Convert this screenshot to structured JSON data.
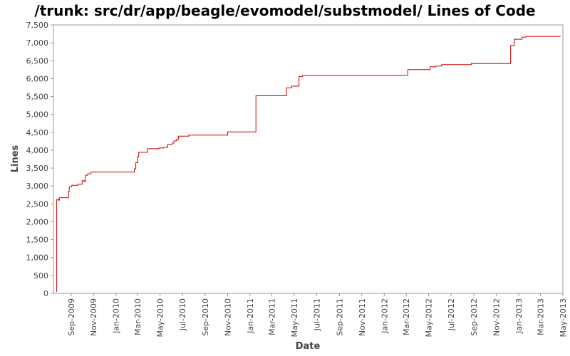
{
  "chart_data": {
    "type": "line",
    "title": "/trunk: src/dr/app/beagle/evomodel/substmodel/ Lines of Code",
    "xlabel": "Date",
    "ylabel": "Lines",
    "ylim": [
      0,
      7500
    ],
    "xlim": [
      "2009-07-15",
      "2013-05-01"
    ],
    "grid": false,
    "legend": "none",
    "line_color": "#cc0000",
    "y_ticks": [
      0,
      500,
      1000,
      1500,
      2000,
      2500,
      3000,
      3500,
      4000,
      4500,
      5000,
      5500,
      6000,
      6500,
      7000,
      7500
    ],
    "y_tick_labels": [
      "0",
      "500",
      "1,000",
      "1,500",
      "2,000",
      "2,500",
      "3,000",
      "3,500",
      "4,000",
      "4,500",
      "5,000",
      "5,500",
      "6,000",
      "6,500",
      "7,000",
      "7,500"
    ],
    "x_ticks": [
      "2009-09-01",
      "2009-11-01",
      "2010-01-01",
      "2010-03-01",
      "2010-05-01",
      "2010-07-01",
      "2010-09-01",
      "2010-11-01",
      "2011-01-01",
      "2011-03-01",
      "2011-05-01",
      "2011-07-01",
      "2011-09-01",
      "2011-11-01",
      "2012-01-01",
      "2012-03-01",
      "2012-05-01",
      "2012-07-01",
      "2012-09-01",
      "2012-11-01",
      "2013-01-01",
      "2013-03-01",
      "2013-05-01"
    ],
    "x_tick_labels": [
      "Sep-2009",
      "Nov-2009",
      "Jan-2010",
      "Mar-2010",
      "May-2010",
      "Jul-2010",
      "Sep-2010",
      "Nov-2010",
      "Jan-2011",
      "Mar-2011",
      "May-2011",
      "Jul-2011",
      "Sep-2011",
      "Nov-2011",
      "Jan-2012",
      "Mar-2012",
      "May-2012",
      "Jul-2012",
      "Sep-2012",
      "Nov-2012",
      "Jan-2013",
      "Mar-2013",
      "May-2013"
    ],
    "series": [
      {
        "points": [
          [
            "2009-07-23",
            50
          ],
          [
            "2009-07-24",
            2620
          ],
          [
            "2009-07-29",
            2600
          ],
          [
            "2009-07-31",
            2670
          ],
          [
            "2009-08-25",
            2850
          ],
          [
            "2009-08-27",
            2980
          ],
          [
            "2009-09-03",
            3020
          ],
          [
            "2009-09-20",
            3050
          ],
          [
            "2009-10-01",
            3150
          ],
          [
            "2009-10-07",
            3120
          ],
          [
            "2009-10-10",
            3300
          ],
          [
            "2009-10-16",
            3340
          ],
          [
            "2009-10-25",
            3390
          ],
          [
            "2010-02-20",
            3480
          ],
          [
            "2010-02-24",
            3650
          ],
          [
            "2010-03-01",
            3820
          ],
          [
            "2010-03-04",
            3940
          ],
          [
            "2010-03-28",
            4040
          ],
          [
            "2010-04-28",
            4060
          ],
          [
            "2010-05-10",
            4080
          ],
          [
            "2010-05-22",
            4160
          ],
          [
            "2010-06-03",
            4200
          ],
          [
            "2010-06-08",
            4260
          ],
          [
            "2010-06-15",
            4300
          ],
          [
            "2010-06-20",
            4390
          ],
          [
            "2010-07-18",
            4420
          ],
          [
            "2010-11-01",
            4510
          ],
          [
            "2011-01-17",
            5520
          ],
          [
            "2011-04-10",
            5740
          ],
          [
            "2011-04-24",
            5790
          ],
          [
            "2011-05-14",
            6060
          ],
          [
            "2011-05-24",
            6090
          ],
          [
            "2012-03-05",
            6250
          ],
          [
            "2012-05-05",
            6330
          ],
          [
            "2012-05-20",
            6350
          ],
          [
            "2012-06-05",
            6390
          ],
          [
            "2012-08-25",
            6420
          ],
          [
            "2012-12-10",
            6930
          ],
          [
            "2012-12-20",
            7100
          ],
          [
            "2013-01-10",
            7160
          ],
          [
            "2013-01-20",
            7180
          ],
          [
            "2013-04-25",
            7180
          ]
        ]
      }
    ]
  }
}
